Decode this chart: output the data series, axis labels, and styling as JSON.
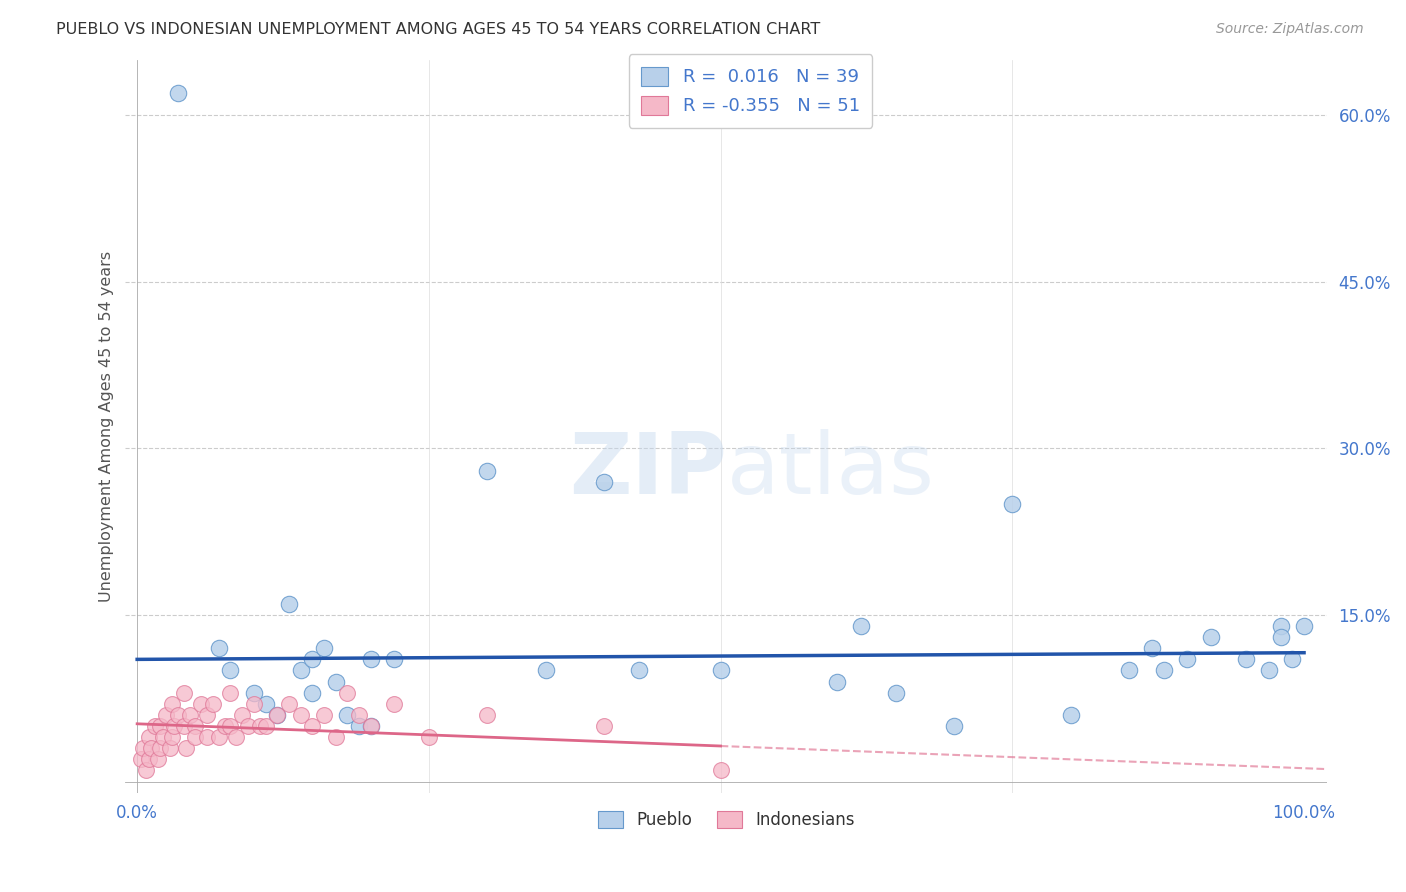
{
  "title": "PUEBLO VS INDONESIAN UNEMPLOYMENT AMONG AGES 45 TO 54 YEARS CORRELATION CHART",
  "source": "Source: ZipAtlas.com",
  "ylabel": "Unemployment Among Ages 45 to 54 years",
  "xlim": [
    -1,
    102
  ],
  "ylim": [
    -1,
    65
  ],
  "ytick_vals": [
    15,
    30,
    45,
    60
  ],
  "ytick_labels": [
    "15.0%",
    "30.0%",
    "45.0%",
    "60.0%"
  ],
  "xtick_vals": [
    0,
    100
  ],
  "xtick_labels": [
    "0.0%",
    "100.0%"
  ],
  "legend_r_pueblo": " 0.016",
  "legend_n_pueblo": "39",
  "legend_r_indonesian": "-0.355",
  "legend_n_indonesian": "51",
  "pueblo_fill_color": "#b8d0ea",
  "pueblo_edge_color": "#6699cc",
  "indonesian_fill_color": "#f5b8c8",
  "indonesian_edge_color": "#e07898",
  "pueblo_line_color": "#2255aa",
  "indonesian_line_color": "#dd6688",
  "watermark_color": "#d0dff0",
  "grid_color": "#cccccc",
  "background_color": "#ffffff",
  "tick_color": "#4477cc",
  "title_color": "#333333",
  "label_color": "#555555",
  "source_color": "#999999",
  "pueblo_x": [
    3.5,
    7,
    8,
    10,
    11,
    12,
    13,
    14,
    15,
    15,
    16,
    17,
    18,
    19,
    20,
    20,
    22,
    30,
    35,
    40,
    43,
    50,
    60,
    62,
    65,
    70,
    75,
    80,
    85,
    87,
    88,
    90,
    92,
    95,
    97,
    98,
    98,
    99,
    100
  ],
  "pueblo_y": [
    62,
    12,
    10,
    8,
    7,
    6,
    16,
    10,
    11,
    8,
    12,
    9,
    6,
    5,
    5,
    11,
    11,
    28,
    10,
    27,
    10,
    10,
    9,
    14,
    8,
    5,
    25,
    6,
    10,
    12,
    10,
    11,
    13,
    11,
    10,
    14,
    13,
    11,
    14
  ],
  "indonesian_x": [
    0.3,
    0.5,
    0.8,
    1,
    1,
    1.2,
    1.5,
    1.8,
    2,
    2,
    2.2,
    2.5,
    2.8,
    3,
    3,
    3.2,
    3.5,
    4,
    4,
    4.2,
    4.5,
    5,
    5,
    5.5,
    6,
    6,
    6.5,
    7,
    7.5,
    8,
    8,
    8.5,
    9,
    9.5,
    10,
    10.5,
    11,
    12,
    13,
    14,
    15,
    16,
    17,
    18,
    19,
    20,
    22,
    25,
    30,
    40,
    50
  ],
  "indonesian_y": [
    2,
    3,
    1,
    4,
    2,
    3,
    5,
    2,
    5,
    3,
    4,
    6,
    3,
    7,
    4,
    5,
    6,
    5,
    8,
    3,
    6,
    5,
    4,
    7,
    4,
    6,
    7,
    4,
    5,
    8,
    5,
    4,
    6,
    5,
    7,
    5,
    5,
    6,
    7,
    6,
    5,
    6,
    4,
    8,
    6,
    5,
    7,
    4,
    6,
    5,
    1
  ],
  "pueblo_line_slope": 0.006,
  "pueblo_line_intercept": 11.0,
  "indonesian_line_slope": -0.04,
  "indonesian_line_intercept": 5.2
}
